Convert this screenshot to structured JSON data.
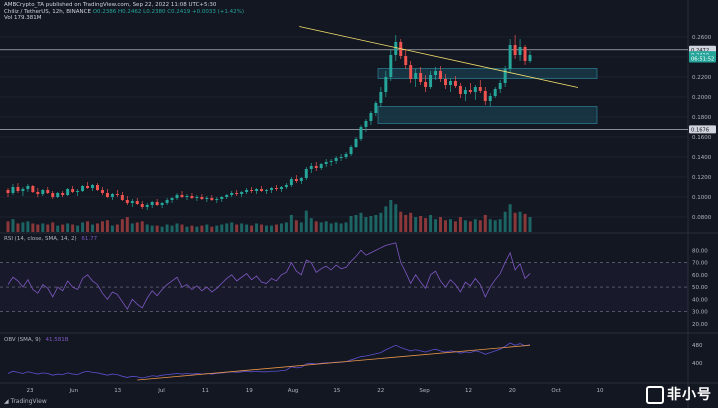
{
  "header": {
    "published": "AMBCrypto_TA published on TradingView.com, Sep 22, 2022 11:08 UTC+5:30",
    "symbol": "Chiliz / TetherUS, 12h, BINANCE",
    "ohlc": "O0.2386 H0.2462 L0.2380 C0.2419 +0.0033 (+1.42%)",
    "volume": "Vol 179.381M"
  },
  "panes": {
    "rsi_label": "RSI (14, close, SMA, 14, 2)",
    "rsi_value": "61.77",
    "obv_label": "OBV (SMA, 9)",
    "obv_value": "41.581B"
  },
  "footer": {
    "brand": "TradingView"
  },
  "watermark": {
    "text": "非小号"
  },
  "colors": {
    "bg": "#131722",
    "up": "#26a69a",
    "down": "#ef5350",
    "rsi": "#7e57c2",
    "obv": "#5b4fcf",
    "trend": "#f7e26b",
    "zone": "#1c4a5c",
    "obvTrend": "#e8954a"
  },
  "chart_data": {
    "type": "candlestick",
    "title": "Chiliz / TetherUS, 12h, BINANCE",
    "y_axis_ticks": [
      "0.2600",
      "0.2400",
      "0.2200",
      "0.2000",
      "0.1800",
      "0.1600",
      "0.1400",
      "0.1200",
      "0.1000",
      "0.0800"
    ],
    "ylim": [
      0.07,
      0.27
    ],
    "price_tags": [
      {
        "label": "0.2472",
        "value": 0.2472,
        "kind": "level"
      },
      {
        "label": "0.2419",
        "value": 0.2419,
        "kind": "last"
      },
      {
        "label": "06:51:52",
        "value": 0.2385,
        "kind": "countdown"
      },
      {
        "label": "0.1676",
        "value": 0.1676,
        "kind": "level"
      }
    ],
    "x_axis_ticks": [
      "23",
      "Jun",
      "13",
      "Jul",
      "11",
      "19",
      "Aug",
      "15",
      "22",
      "Sep",
      "12",
      "20",
      "Oct",
      "10"
    ],
    "horizontal_levels": [
      0.2472,
      0.1676
    ],
    "zones": [
      {
        "low": 0.2185,
        "high": 0.2285
      },
      {
        "low": 0.1735,
        "high": 0.1905
      }
    ],
    "trendline": {
      "from_x": 0.435,
      "from_y": 0.2705,
      "to_x": 0.84,
      "to_y": 0.2095
    },
    "candles": [
      [
        0.107,
        0.109,
        0.1,
        0.104
      ],
      [
        0.104,
        0.113,
        0.102,
        0.11
      ],
      [
        0.11,
        0.114,
        0.104,
        0.106
      ],
      [
        0.106,
        0.11,
        0.101,
        0.108
      ],
      [
        0.108,
        0.113,
        0.105,
        0.111
      ],
      [
        0.111,
        0.112,
        0.104,
        0.105
      ],
      [
        0.105,
        0.109,
        0.1,
        0.103
      ],
      [
        0.103,
        0.108,
        0.101,
        0.107
      ],
      [
        0.107,
        0.11,
        0.103,
        0.104
      ],
      [
        0.104,
        0.106,
        0.098,
        0.1
      ],
      [
        0.1,
        0.105,
        0.099,
        0.104
      ],
      [
        0.104,
        0.106,
        0.1,
        0.102
      ],
      [
        0.102,
        0.109,
        0.101,
        0.108
      ],
      [
        0.108,
        0.111,
        0.104,
        0.105
      ],
      [
        0.105,
        0.108,
        0.101,
        0.106
      ],
      [
        0.106,
        0.112,
        0.105,
        0.111
      ],
      [
        0.111,
        0.115,
        0.108,
        0.109
      ],
      [
        0.109,
        0.113,
        0.106,
        0.112
      ],
      [
        0.112,
        0.114,
        0.106,
        0.107
      ],
      [
        0.107,
        0.11,
        0.102,
        0.104
      ],
      [
        0.104,
        0.108,
        0.099,
        0.1
      ],
      [
        0.1,
        0.104,
        0.097,
        0.103
      ],
      [
        0.103,
        0.107,
        0.1,
        0.102
      ],
      [
        0.102,
        0.105,
        0.096,
        0.097
      ],
      [
        0.097,
        0.101,
        0.092,
        0.094
      ],
      [
        0.094,
        0.098,
        0.09,
        0.096
      ],
      [
        0.096,
        0.099,
        0.092,
        0.093
      ],
      [
        0.093,
        0.096,
        0.088,
        0.09
      ],
      [
        0.09,
        0.094,
        0.087,
        0.092
      ],
      [
        0.092,
        0.096,
        0.089,
        0.095
      ],
      [
        0.095,
        0.098,
        0.091,
        0.092
      ],
      [
        0.092,
        0.095,
        0.089,
        0.094
      ],
      [
        0.094,
        0.099,
        0.092,
        0.097
      ],
      [
        0.097,
        0.1,
        0.094,
        0.099
      ],
      [
        0.099,
        0.104,
        0.097,
        0.102
      ],
      [
        0.102,
        0.106,
        0.099,
        0.1
      ],
      [
        0.1,
        0.103,
        0.097,
        0.101
      ],
      [
        0.101,
        0.104,
        0.098,
        0.099
      ],
      [
        0.099,
        0.102,
        0.096,
        0.1
      ],
      [
        0.1,
        0.103,
        0.097,
        0.098
      ],
      [
        0.098,
        0.101,
        0.095,
        0.099
      ],
      [
        0.099,
        0.102,
        0.096,
        0.097
      ],
      [
        0.097,
        0.1,
        0.094,
        0.098
      ],
      [
        0.098,
        0.101,
        0.095,
        0.1
      ],
      [
        0.1,
        0.103,
        0.098,
        0.102
      ],
      [
        0.102,
        0.106,
        0.1,
        0.104
      ],
      [
        0.104,
        0.107,
        0.101,
        0.103
      ],
      [
        0.103,
        0.106,
        0.1,
        0.105
      ],
      [
        0.105,
        0.109,
        0.103,
        0.107
      ],
      [
        0.107,
        0.11,
        0.104,
        0.106
      ],
      [
        0.106,
        0.109,
        0.103,
        0.108
      ],
      [
        0.108,
        0.111,
        0.105,
        0.106
      ],
      [
        0.106,
        0.108,
        0.103,
        0.107
      ],
      [
        0.107,
        0.11,
        0.104,
        0.109
      ],
      [
        0.109,
        0.112,
        0.106,
        0.108
      ],
      [
        0.108,
        0.111,
        0.105,
        0.11
      ],
      [
        0.11,
        0.114,
        0.108,
        0.112
      ],
      [
        0.112,
        0.12,
        0.11,
        0.118
      ],
      [
        0.118,
        0.122,
        0.114,
        0.116
      ],
      [
        0.116,
        0.12,
        0.113,
        0.119
      ],
      [
        0.119,
        0.13,
        0.117,
        0.128
      ],
      [
        0.128,
        0.134,
        0.124,
        0.131
      ],
      [
        0.131,
        0.135,
        0.126,
        0.129
      ],
      [
        0.129,
        0.134,
        0.127,
        0.133
      ],
      [
        0.133,
        0.138,
        0.13,
        0.135
      ],
      [
        0.135,
        0.138,
        0.131,
        0.136
      ],
      [
        0.136,
        0.141,
        0.133,
        0.139
      ],
      [
        0.139,
        0.143,
        0.136,
        0.14
      ],
      [
        0.14,
        0.145,
        0.138,
        0.143
      ],
      [
        0.143,
        0.152,
        0.141,
        0.15
      ],
      [
        0.15,
        0.16,
        0.149,
        0.158
      ],
      [
        0.158,
        0.172,
        0.156,
        0.17
      ],
      [
        0.17,
        0.178,
        0.165,
        0.176
      ],
      [
        0.176,
        0.186,
        0.172,
        0.184
      ],
      [
        0.184,
        0.196,
        0.181,
        0.194
      ],
      [
        0.194,
        0.21,
        0.19,
        0.205
      ],
      [
        0.205,
        0.226,
        0.2,
        0.22
      ],
      [
        0.22,
        0.248,
        0.216,
        0.242
      ],
      [
        0.242,
        0.262,
        0.236,
        0.255
      ],
      [
        0.255,
        0.258,
        0.238,
        0.241
      ],
      [
        0.241,
        0.248,
        0.228,
        0.232
      ],
      [
        0.232,
        0.236,
        0.214,
        0.218
      ],
      [
        0.218,
        0.228,
        0.21,
        0.224
      ],
      [
        0.224,
        0.23,
        0.212,
        0.215
      ],
      [
        0.215,
        0.222,
        0.205,
        0.21
      ],
      [
        0.21,
        0.226,
        0.208,
        0.222
      ],
      [
        0.222,
        0.23,
        0.217,
        0.226
      ],
      [
        0.226,
        0.231,
        0.215,
        0.218
      ],
      [
        0.218,
        0.223,
        0.208,
        0.212
      ],
      [
        0.212,
        0.219,
        0.205,
        0.216
      ],
      [
        0.216,
        0.221,
        0.209,
        0.211
      ],
      [
        0.211,
        0.214,
        0.199,
        0.203
      ],
      [
        0.203,
        0.21,
        0.196,
        0.207
      ],
      [
        0.207,
        0.214,
        0.203,
        0.205
      ],
      [
        0.205,
        0.212,
        0.197,
        0.21
      ],
      [
        0.21,
        0.217,
        0.204,
        0.206
      ],
      [
        0.206,
        0.21,
        0.192,
        0.196
      ],
      [
        0.196,
        0.204,
        0.191,
        0.201
      ],
      [
        0.201,
        0.21,
        0.199,
        0.208
      ],
      [
        0.208,
        0.217,
        0.204,
        0.214
      ],
      [
        0.214,
        0.231,
        0.21,
        0.228
      ],
      [
        0.228,
        0.258,
        0.225,
        0.252
      ],
      [
        0.252,
        0.262,
        0.238,
        0.242
      ],
      [
        0.242,
        0.258,
        0.236,
        0.25
      ],
      [
        0.25,
        0.252,
        0.232,
        0.236
      ],
      [
        0.236,
        0.246,
        0.234,
        0.242
      ]
    ],
    "volumes": [
      0.5,
      0.6,
      0.4,
      0.45,
      0.5,
      0.4,
      0.35,
      0.4,
      0.35,
      0.45,
      0.3,
      0.35,
      0.4,
      0.35,
      0.3,
      0.45,
      0.5,
      0.35,
      0.4,
      0.5,
      0.55,
      0.3,
      0.35,
      0.6,
      0.7,
      0.4,
      0.45,
      0.5,
      0.35,
      0.3,
      0.3,
      0.25,
      0.35,
      0.3,
      0.4,
      0.35,
      0.25,
      0.3,
      0.25,
      0.3,
      0.35,
      0.25,
      0.3,
      0.35,
      0.4,
      0.45,
      0.35,
      0.4,
      0.35,
      0.3,
      0.4,
      0.35,
      0.3,
      0.3,
      0.35,
      0.4,
      0.45,
      0.8,
      0.55,
      0.45,
      1.0,
      0.65,
      0.5,
      0.45,
      0.5,
      0.4,
      0.45,
      0.4,
      0.45,
      0.75,
      0.8,
      0.9,
      0.7,
      0.75,
      0.8,
      0.9,
      1.2,
      1.5,
      1.3,
      0.95,
      0.8,
      0.9,
      0.7,
      0.75,
      0.65,
      0.8,
      0.6,
      0.7,
      0.55,
      0.6,
      0.5,
      0.7,
      0.55,
      0.5,
      0.6,
      0.55,
      0.8,
      0.6,
      0.55,
      0.6,
      0.95,
      1.3,
      0.9,
      0.95,
      0.85,
      0.7
    ],
    "rsi": {
      "ticks": [
        "80.00",
        "70.00",
        "60.00",
        "50.00",
        "40.00",
        "30.00",
        "20.00"
      ],
      "levels": [
        70,
        50,
        30
      ],
      "values": [
        52,
        58,
        55,
        50,
        56,
        48,
        45,
        52,
        49,
        42,
        50,
        47,
        55,
        50,
        48,
        57,
        60,
        55,
        52,
        45,
        40,
        46,
        44,
        38,
        32,
        40,
        36,
        33,
        41,
        47,
        43,
        48,
        52,
        55,
        58,
        50,
        52,
        48,
        51,
        47,
        50,
        46,
        49,
        53,
        57,
        60,
        55,
        58,
        61,
        56,
        59,
        54,
        53,
        57,
        55,
        60,
        62,
        70,
        63,
        60,
        72,
        70,
        62,
        65,
        67,
        64,
        68,
        65,
        66,
        71,
        75,
        80,
        76,
        78,
        80,
        82,
        84,
        85,
        86,
        70,
        62,
        53,
        60,
        54,
        49,
        60,
        63,
        55,
        50,
        56,
        52,
        46,
        54,
        51,
        57,
        52,
        42,
        50,
        56,
        61,
        70,
        78,
        64,
        69,
        57,
        61
      ]
    },
    "obv": {
      "ticks": [
        "480",
        "400"
      ],
      "values": [
        10,
        14,
        12,
        10,
        13,
        11,
        9,
        11,
        10,
        7,
        9,
        8,
        11,
        9,
        8,
        12,
        14,
        12,
        11,
        9,
        7,
        9,
        8,
        5,
        3,
        5,
        4,
        2,
        4,
        6,
        5,
        7,
        8,
        9,
        10,
        9,
        10,
        9,
        10,
        9,
        10,
        9,
        10,
        11,
        12,
        13,
        12,
        13,
        14,
        13,
        14,
        13,
        13,
        14,
        14,
        15,
        16,
        22,
        20,
        21,
        27,
        28,
        27,
        28,
        29,
        29,
        30,
        30,
        31,
        34,
        37,
        40,
        41,
        43,
        45,
        47,
        52,
        56,
        60,
        56,
        53,
        50,
        52,
        50,
        48,
        51,
        53,
        50,
        48,
        50,
        49,
        46,
        48,
        47,
        50,
        48,
        44,
        47,
        50,
        53,
        58,
        64,
        60,
        63,
        59,
        61
      ]
    }
  }
}
